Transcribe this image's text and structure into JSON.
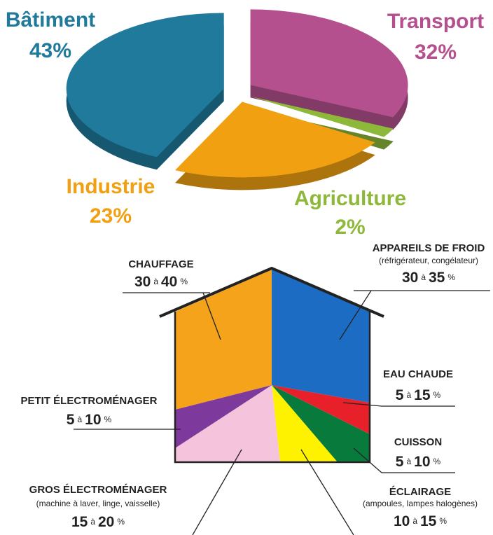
{
  "chart_data": {
    "type": "pie",
    "categories": [
      "Transport",
      "Agriculture",
      "Industrie",
      "Bâtiment"
    ],
    "values": [
      32,
      2,
      23,
      43
    ],
    "value_labels": [
      "32%",
      "2%",
      "23%",
      "43%"
    ],
    "colors": [
      "#b5508e",
      "#8db83a",
      "#f0a010",
      "#1f7a9b"
    ]
  },
  "house": {
    "range_sep": "à",
    "unit": "%",
    "items": [
      {
        "label": "CHAUFFAGE",
        "min": 30,
        "max": 40,
        "color": "#f5a31a"
      },
      {
        "label": "APPAREILS DE FROID",
        "detail": "(réfrigérateur, congélateur)",
        "min": 30,
        "max": 35,
        "color": "#1c6cc4"
      },
      {
        "label": "EAU CHAUDE",
        "min": 5,
        "max": 15,
        "color": "#e8202a"
      },
      {
        "label": "CUISSON",
        "min": 5,
        "max": 10,
        "color": "#087a3c"
      },
      {
        "label": "ÉCLAIRAGE",
        "detail": "(ampoules, lampes halogènes)",
        "min": 10,
        "max": 15,
        "color": "#fff200"
      },
      {
        "label": "GROS ÉLECTROMÉNAGER",
        "detail": "(machine à laver, linge, vaisselle)",
        "min": 15,
        "max": 20,
        "color": "#f6c3dc"
      },
      {
        "label": "PETIT ÉLECTROMÉNAGER",
        "min": 5,
        "max": 10,
        "color": "#7d3a9c"
      }
    ]
  }
}
